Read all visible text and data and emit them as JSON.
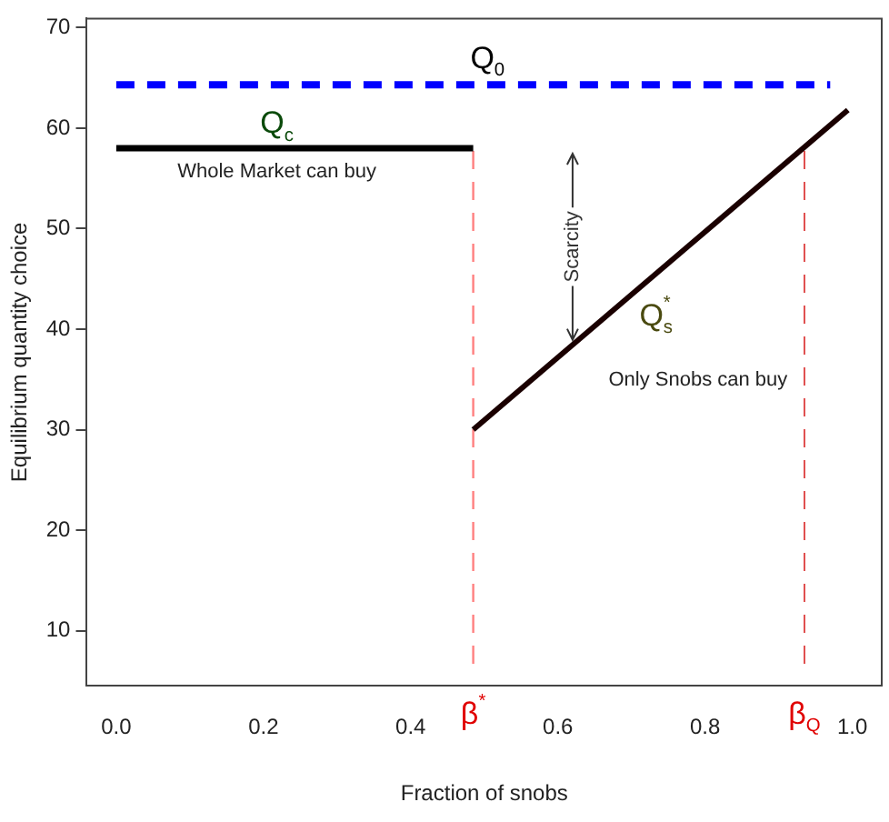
{
  "chart_data": {
    "type": "line",
    "xlabel": "Fraction of snobs",
    "ylabel": "Equilibrium quantity choice",
    "xlim": [
      -0.04,
      1.04
    ],
    "ylim": [
      4.5,
      70.9
    ],
    "xticks": [
      {
        "value": 0,
        "label": "0.0"
      },
      {
        "value": 0.2,
        "label": "0.2"
      },
      {
        "value": 0.4,
        "label": "0.4"
      },
      {
        "value": 0.6,
        "label": "0.6"
      },
      {
        "value": 0.8,
        "label": "0.8"
      },
      {
        "value": 1,
        "label": "1.0"
      }
    ],
    "yticks": [
      10,
      20,
      30,
      40,
      50,
      60,
      70
    ],
    "grid": false,
    "legend": false,
    "marker": "none",
    "series": [
      {
        "color": "#0000ff",
        "line_style": "dashed",
        "x": [
          0,
          0.97
        ],
        "values": [
          64.3,
          64.3
        ]
      },
      {
        "color": "#000000",
        "line_style": "solid",
        "x": [
          0,
          0.485
        ],
        "values": [
          58,
          58
        ]
      },
      {
        "color": "#1a0000",
        "line_style": "solid",
        "x": [
          0.485,
          0.994
        ],
        "values": [
          30,
          61.8
        ]
      },
      {
        "color": "#ff8080",
        "line_style": "dashed",
        "x": [
          0.485,
          0.485
        ],
        "values": [
          6.7,
          58
        ]
      },
      {
        "color": "#e05050",
        "line_style": "dashed",
        "x": [
          0.935,
          0.935
        ],
        "values": [
          6.7,
          58.1
        ]
      }
    ],
    "annotations": [
      "Q$_{0}$",
      "Q$_{c}$",
      "Whole Market can buy",
      {
        "text": "Scarcity",
        "x": 0.62,
        "y": 38.4
      },
      "Q$_{s}$$^{*}$",
      "Only Snobs can buy",
      "β$^{*}$",
      "β$_{Q}$"
    ]
  }
}
